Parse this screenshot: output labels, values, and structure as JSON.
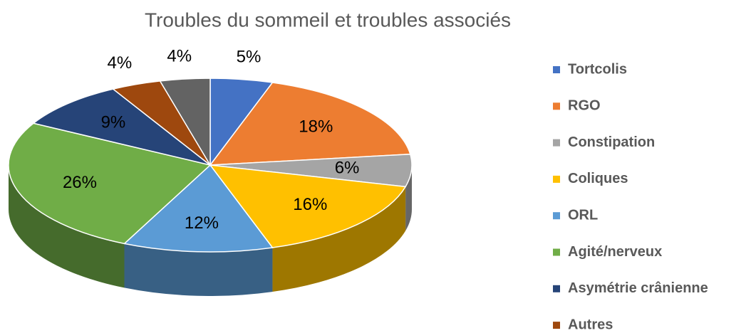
{
  "chart_data": {
    "type": "pie3d",
    "title": "Troubles du sommeil et troubles associés",
    "categories": [
      "Tortcolis",
      "RGO",
      "Constipation",
      "Coliques",
      "ORL",
      "Agité/nerveux",
      "Asymétrie crânienne",
      "Autres",
      null
    ],
    "values": [
      5,
      18,
      6,
      16,
      12,
      26,
      9,
      4,
      4
    ],
    "value_labels": [
      "5%",
      "18%",
      "6%",
      "16%",
      "12%",
      "26%",
      "9%",
      "4%",
      "4%"
    ],
    "colors": [
      "#4472c4",
      "#ed7d31",
      "#a5a5a5",
      "#ffc000",
      "#5b9bd5",
      "#70ad47",
      "#264478",
      "#9e480e",
      "#636363"
    ],
    "legend": "right"
  }
}
